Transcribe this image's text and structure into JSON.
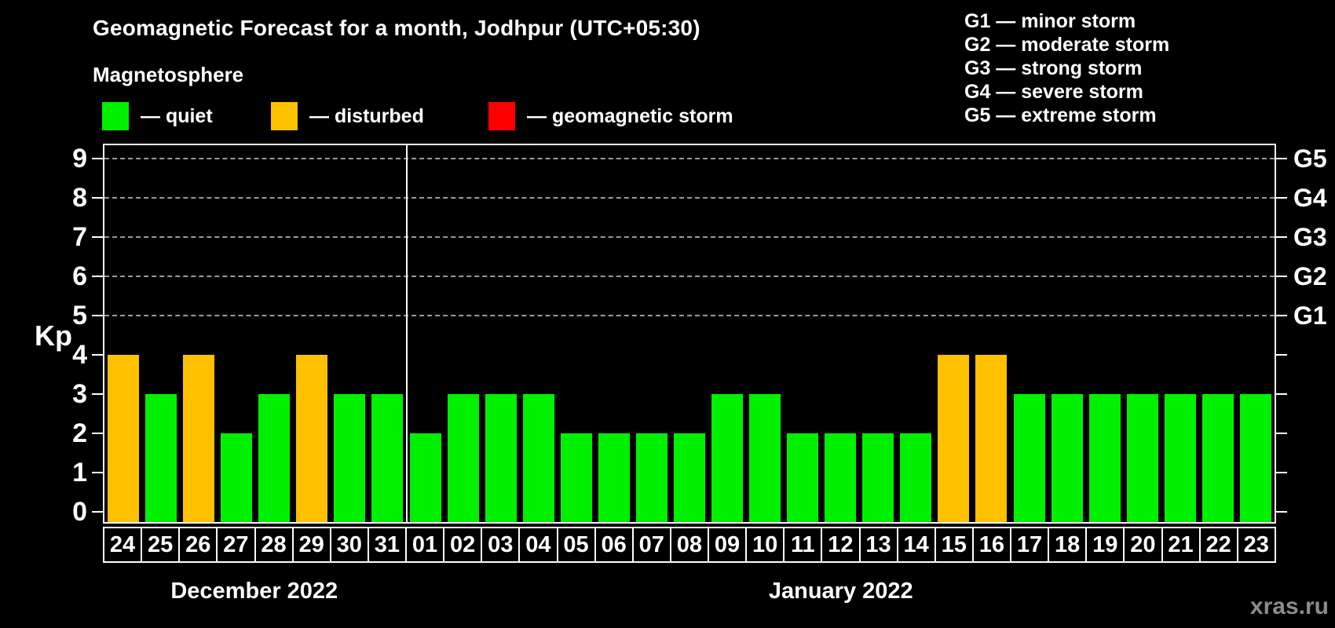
{
  "header": {
    "title": "Geomagnetic Forecast for a month, Jodhpur (UTC+05:30)",
    "subtitle": "Magnetosphere"
  },
  "legend": {
    "items": [
      {
        "key": "quiet",
        "label": "— quiet",
        "color": "#00f000"
      },
      {
        "key": "disturbed",
        "label": "— disturbed",
        "color": "#ffc000"
      },
      {
        "key": "storm",
        "label": "— geomagnetic storm",
        "color": "#ff0000"
      }
    ]
  },
  "g_legend": {
    "lines": [
      "G1 — minor storm",
      "G2 — moderate storm",
      "G3 — strong storm",
      "G4 — severe storm",
      "G5 — extreme storm"
    ]
  },
  "y_axis": {
    "label": "Kp",
    "ticks": [
      9,
      8,
      7,
      6,
      5,
      4,
      3,
      2,
      1,
      0
    ]
  },
  "right_axis": {
    "labels": [
      {
        "text": "G5",
        "kp": 9
      },
      {
        "text": "G4",
        "kp": 8
      },
      {
        "text": "G3",
        "kp": 7
      },
      {
        "text": "G2",
        "kp": 6
      },
      {
        "text": "G1",
        "kp": 5
      }
    ]
  },
  "months": [
    {
      "name": "December 2022",
      "days": 8
    },
    {
      "name": "January 2022",
      "days": 23
    }
  ],
  "watermark": "xras.ru",
  "chart_data": {
    "type": "bar",
    "title": "Geomagnetic Forecast for a month, Jodhpur (UTC+05:30)",
    "xlabel": "",
    "ylabel": "Kp",
    "ylim": [
      0,
      9
    ],
    "grid": "dashed horizontal at Kp 5-9 only",
    "gridlines_kp": [
      5,
      6,
      7,
      8,
      9
    ],
    "legend_position": "top",
    "categories": [
      "24",
      "25",
      "26",
      "27",
      "28",
      "29",
      "30",
      "31",
      "01",
      "02",
      "03",
      "04",
      "05",
      "06",
      "07",
      "08",
      "09",
      "10",
      "11",
      "12",
      "13",
      "14",
      "15",
      "16",
      "17",
      "18",
      "19",
      "20",
      "21",
      "22",
      "23"
    ],
    "series": [
      {
        "name": "Kp forecast",
        "values": [
          4,
          3,
          4,
          2,
          3,
          4,
          3,
          3,
          2,
          3,
          3,
          3,
          2,
          2,
          2,
          2,
          3,
          3,
          2,
          2,
          2,
          2,
          4,
          4,
          3,
          3,
          3,
          3,
          3,
          3,
          3
        ]
      }
    ],
    "states": [
      "disturbed",
      "quiet",
      "disturbed",
      "quiet",
      "quiet",
      "disturbed",
      "quiet",
      "quiet",
      "quiet",
      "quiet",
      "quiet",
      "quiet",
      "quiet",
      "quiet",
      "quiet",
      "quiet",
      "quiet",
      "quiet",
      "quiet",
      "quiet",
      "quiet",
      "quiet",
      "disturbed",
      "disturbed",
      "quiet",
      "quiet",
      "quiet",
      "quiet",
      "quiet",
      "quiet",
      "quiet"
    ],
    "month_split_index": 8,
    "colors": {
      "quiet": "#00f000",
      "disturbed": "#ffc000",
      "storm": "#ff0000"
    }
  }
}
